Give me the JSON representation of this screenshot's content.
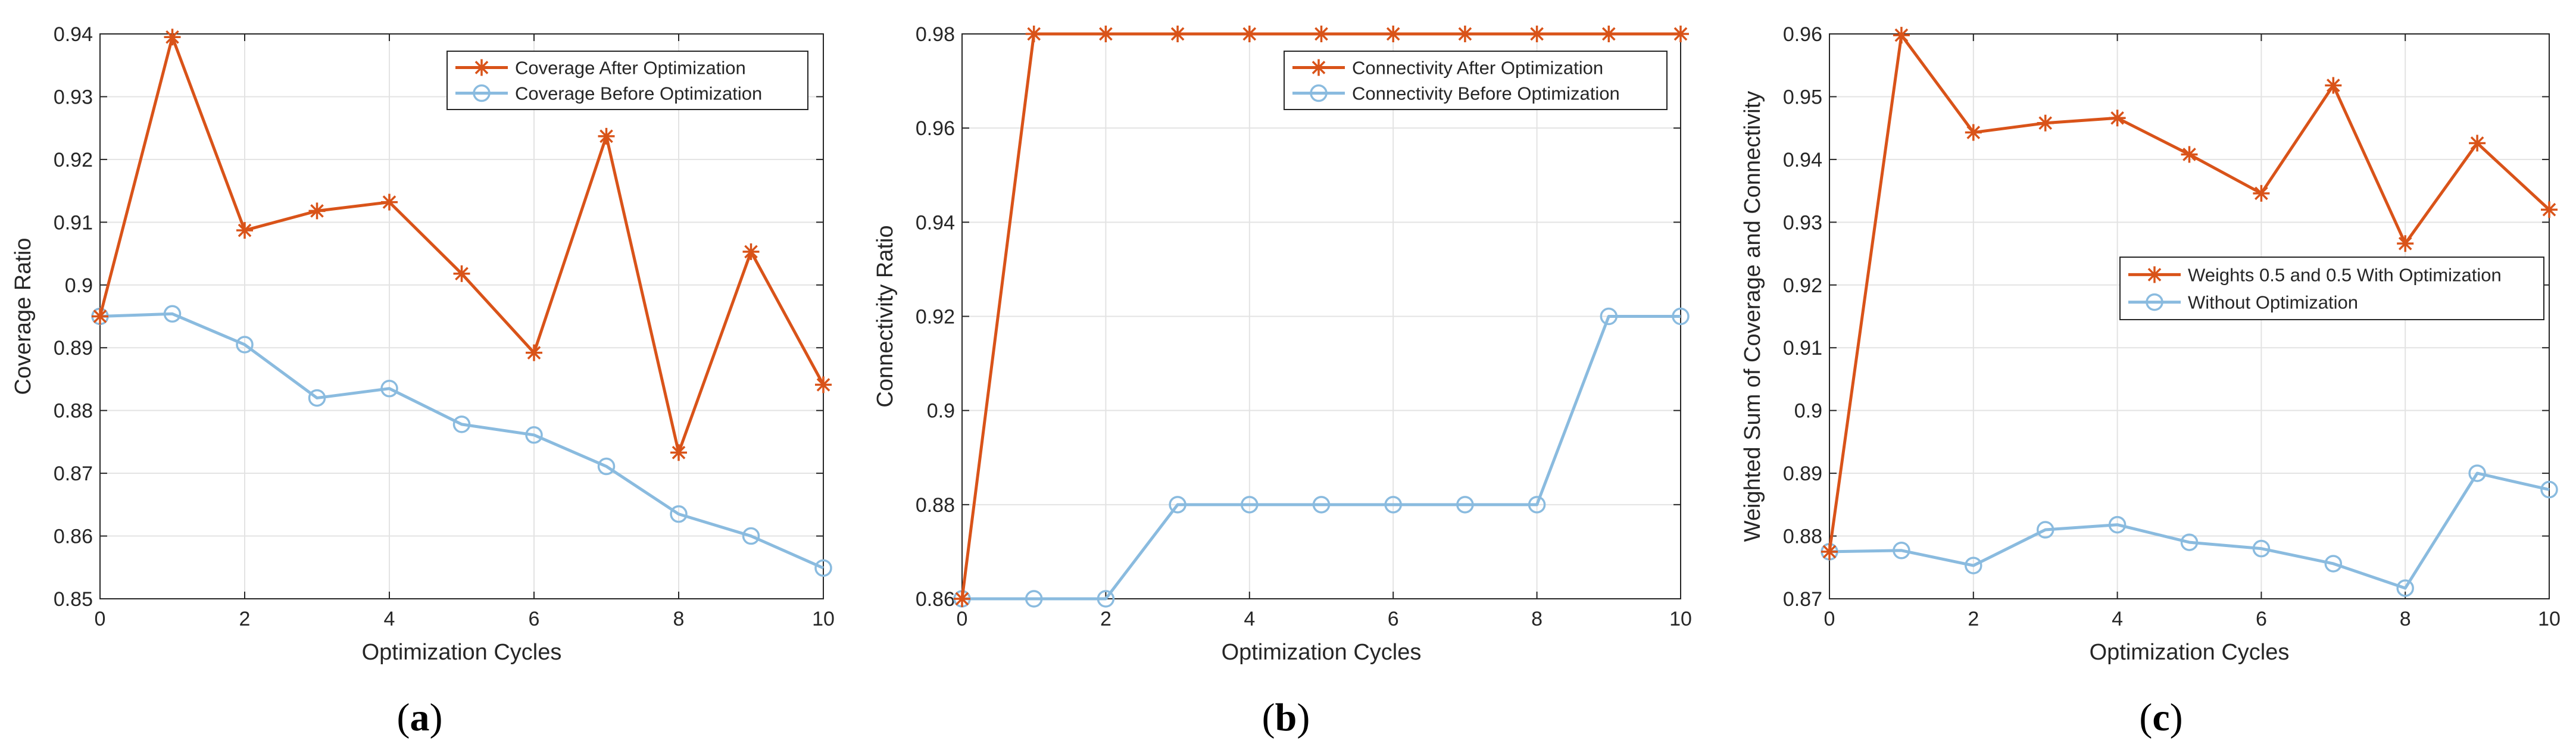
{
  "colors": {
    "after": "#D95319",
    "before": "#8ABBDF",
    "axis": "#262626",
    "grid": "#E3E3E3"
  },
  "chart_data": [
    {
      "type": "line",
      "caption": "(a)",
      "xlabel": "Optimization Cycles",
      "ylabel": "Coverage Ratio",
      "xlim": [
        0,
        10
      ],
      "ylim": [
        0.85,
        0.94
      ],
      "xticks": [
        "0",
        "2",
        "4",
        "6",
        "8",
        "10"
      ],
      "yticks": [
        "0.85",
        "0.86",
        "0.87",
        "0.88",
        "0.89",
        "0.9",
        "0.91",
        "0.92",
        "0.93",
        "0.94"
      ],
      "grid": true,
      "legend_location": "top-right",
      "x": [
        0,
        1,
        2,
        3,
        4,
        5,
        6,
        7,
        8,
        9,
        10
      ],
      "series": [
        {
          "name": "Coverage After Optimization",
          "marker": "asterisk",
          "color": "after",
          "values": [
            0.895,
            0.9395,
            0.9087,
            0.9118,
            0.9132,
            0.9018,
            0.8892,
            0.9237,
            0.8733,
            0.9053,
            0.8841
          ]
        },
        {
          "name": "Coverage Before Optimization",
          "marker": "circle",
          "color": "before",
          "values": [
            0.895,
            0.8954,
            0.8905,
            0.882,
            0.8835,
            0.8778,
            0.8761,
            0.8711,
            0.8635,
            0.86,
            0.8549
          ]
        }
      ]
    },
    {
      "type": "line",
      "caption": "(b)",
      "xlabel": "Optimization Cycles",
      "ylabel": "Connectivity Ratio",
      "xlim": [
        0,
        10
      ],
      "ylim": [
        0.86,
        0.98
      ],
      "xticks": [
        "0",
        "2",
        "4",
        "6",
        "8",
        "10"
      ],
      "yticks": [
        "0.86",
        "0.88",
        "0.9",
        "0.92",
        "0.94",
        "0.96",
        "0.98"
      ],
      "grid": true,
      "legend_location": "top-right",
      "x": [
        0,
        1,
        2,
        3,
        4,
        5,
        6,
        7,
        8,
        9,
        10
      ],
      "series": [
        {
          "name": "Connectivity After Optimization",
          "marker": "asterisk",
          "color": "after",
          "values": [
            0.86,
            0.98,
            0.98,
            0.98,
            0.98,
            0.98,
            0.98,
            0.98,
            0.98,
            0.98,
            0.98
          ]
        },
        {
          "name": "Connectivity Before Optimization",
          "marker": "circle",
          "color": "before",
          "values": [
            0.86,
            0.86,
            0.86,
            0.88,
            0.88,
            0.88,
            0.88,
            0.88,
            0.88,
            0.92,
            0.92
          ]
        }
      ]
    },
    {
      "type": "line",
      "caption": "(c)",
      "xlabel": "Optimization Cycles",
      "ylabel": "Weighted Sum of Coverage and Connectivity",
      "xlim": [
        0,
        10
      ],
      "ylim": [
        0.87,
        0.96
      ],
      "xticks": [
        "0",
        "2",
        "4",
        "6",
        "8",
        "10"
      ],
      "yticks": [
        "0.87",
        "0.88",
        "0.89",
        "0.9",
        "0.91",
        "0.92",
        "0.93",
        "0.94",
        "0.95",
        "0.96"
      ],
      "grid": true,
      "legend_location": "center-right",
      "x": [
        0,
        1,
        2,
        3,
        4,
        5,
        6,
        7,
        8,
        9,
        10
      ],
      "series": [
        {
          "name": "Weights 0.5 and 0.5 With Optimization",
          "marker": "asterisk",
          "color": "after",
          "values": [
            0.8775,
            0.9598,
            0.9443,
            0.9458,
            0.9466,
            0.9408,
            0.9346,
            0.9518,
            0.9266,
            0.9426,
            0.932
          ]
        },
        {
          "name": "Without Optimization",
          "marker": "circle",
          "color": "before",
          "values": [
            0.8775,
            0.8777,
            0.8753,
            0.881,
            0.8818,
            0.879,
            0.878,
            0.8756,
            0.8717,
            0.89,
            0.8874
          ]
        }
      ]
    }
  ]
}
